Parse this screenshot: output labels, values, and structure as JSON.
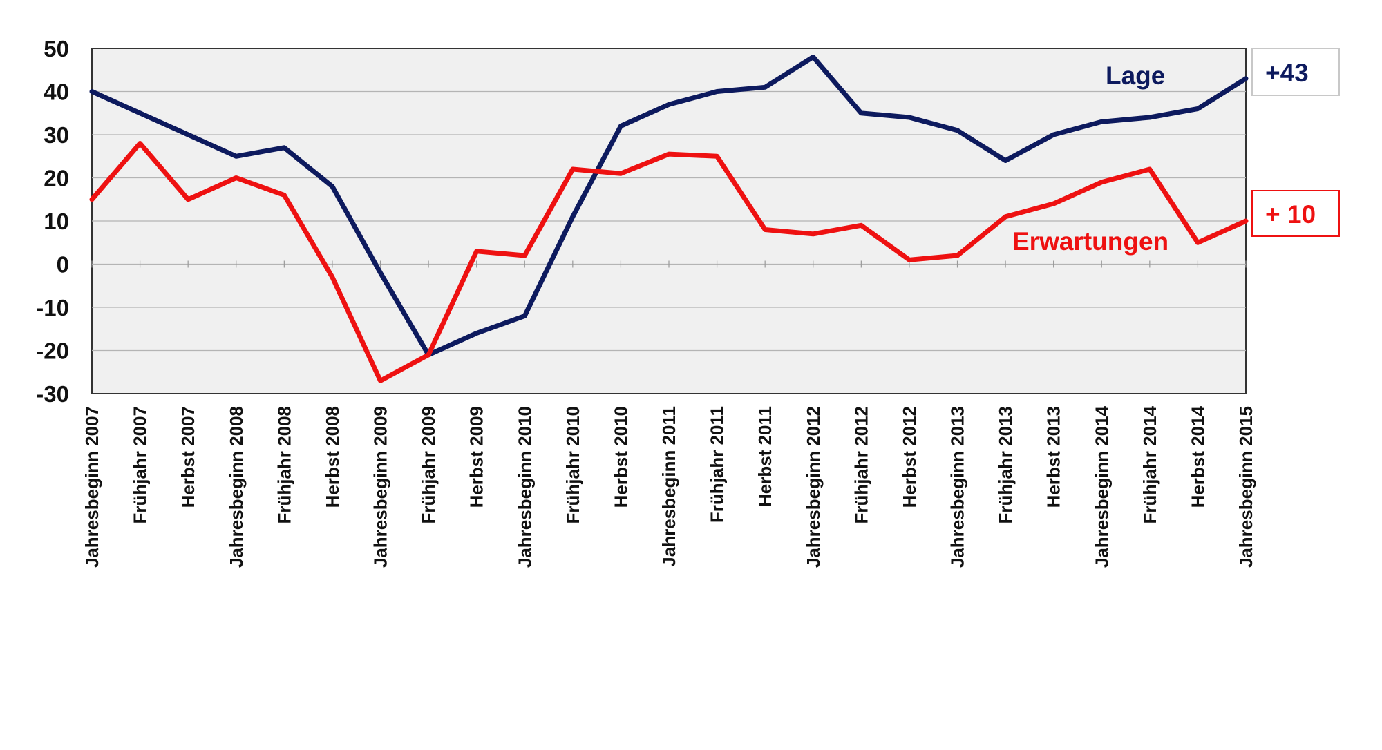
{
  "chart_data": {
    "type": "line",
    "categories": [
      "Jahresbeginn 2007",
      "Frühjahr 2007",
      "Herbst 2007",
      "Jahresbeginn 2008",
      "Frühjahr 2008",
      "Herbst 2008",
      "Jahresbeginn 2009",
      "Frühjahr 2009",
      "Herbst 2009",
      "Jahresbeginn 2010",
      "Frühjahr 2010",
      "Herbst 2010",
      "Jahresbeginn 2011",
      "Frühjahr 2011",
      "Herbst 2011",
      "Jahresbeginn 2012",
      "Frühjahr 2012",
      "Herbst 2012",
      "Jahresbeginn 2013",
      "Frühjahr 2013",
      "Herbst 2013",
      "Jahresbeginn 2014",
      "Frühjahr 2014",
      "Herbst 2014",
      "Jahresbeginn 2015"
    ],
    "series": [
      {
        "name": "Lage",
        "color": "#0d1a5e",
        "end_label": "+43",
        "values": [
          40,
          35,
          30,
          25,
          27,
          18,
          -2,
          -21,
          -16,
          -12,
          11,
          32,
          37,
          40,
          41,
          48,
          35,
          34,
          31,
          24,
          30,
          33,
          34,
          36,
          43
        ]
      },
      {
        "name": "Erwartungen",
        "color": "#ee1111",
        "end_label": "+ 10",
        "values": [
          15,
          28,
          15,
          20,
          16,
          -3,
          -27,
          -21,
          3,
          2,
          22,
          21,
          25.5,
          25,
          8,
          7,
          9,
          1,
          2,
          11,
          14,
          19,
          22,
          5,
          10
        ]
      }
    ],
    "yticks": [
      50,
      40,
      30,
      20,
      10,
      0,
      -10,
      -20,
      -30
    ],
    "ylim": [
      -30,
      50
    ],
    "grid": true,
    "legend": "inline labels"
  }
}
